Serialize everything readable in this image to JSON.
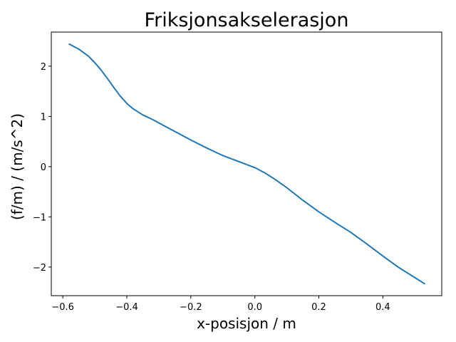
{
  "chart_data": {
    "type": "line",
    "title": "Friksjonsakselerasjon",
    "xlabel": "x-posisjon / m",
    "ylabel": "(f/m) / (m/s^2)",
    "xlim": [
      -0.636,
      0.584
    ],
    "ylim": [
      -2.57,
      2.68
    ],
    "x_ticks": [
      -0.6,
      -0.4,
      -0.2,
      0.0,
      0.2,
      0.4
    ],
    "x_tick_labels": [
      "−0.6",
      "−0.4",
      "−0.2",
      "0.0",
      "0.2",
      "0.4"
    ],
    "y_ticks": [
      -2,
      -1,
      0,
      1,
      2
    ],
    "y_tick_labels": [
      "−2",
      "−1",
      "0",
      "1",
      "2"
    ],
    "grid": false,
    "colors": {
      "line": "#1f77b4"
    },
    "series": [
      {
        "x": [
          -0.58,
          -0.55,
          -0.52,
          -0.5,
          -0.48,
          -0.46,
          -0.44,
          -0.42,
          -0.4,
          -0.38,
          -0.35,
          -0.32,
          -0.3,
          -0.25,
          -0.2,
          -0.15,
          -0.1,
          -0.05,
          0.0,
          0.03,
          0.06,
          0.1,
          0.15,
          0.2,
          0.25,
          0.3,
          0.35,
          0.4,
          0.45,
          0.5,
          0.53
        ],
        "y": [
          2.44,
          2.34,
          2.2,
          2.07,
          1.92,
          1.75,
          1.57,
          1.4,
          1.26,
          1.15,
          1.03,
          0.94,
          0.87,
          0.7,
          0.53,
          0.37,
          0.22,
          0.1,
          -0.02,
          -0.12,
          -0.24,
          -0.42,
          -0.67,
          -0.9,
          -1.11,
          -1.31,
          -1.54,
          -1.78,
          -2.01,
          -2.21,
          -2.33
        ]
      }
    ]
  }
}
